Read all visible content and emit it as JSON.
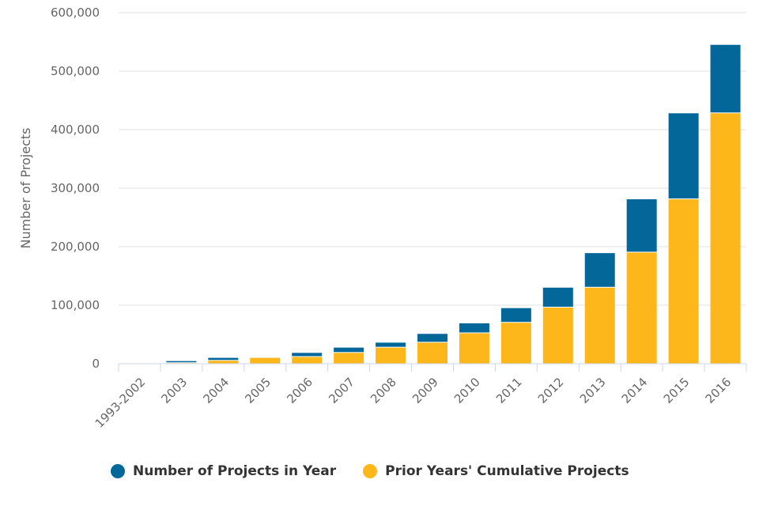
{
  "chart_data": {
    "type": "bar",
    "stacked": true,
    "title": "",
    "xlabel": "",
    "ylabel": "Number of Projects",
    "ylim": [
      0,
      600000
    ],
    "yticks": [
      0,
      100000,
      200000,
      300000,
      400000,
      500000,
      600000
    ],
    "ytick_labels": [
      "0",
      "100,000",
      "200,000",
      "300,000",
      "400,000",
      "500,000",
      "600,000"
    ],
    "grid": true,
    "legend_position": "bottom",
    "categories": [
      "1993-2002",
      "2003",
      "2004",
      "2005",
      "2006",
      "2007",
      "2008",
      "2009",
      "2010",
      "2011",
      "2012",
      "2013",
      "2014",
      "2015",
      "2016"
    ],
    "series": [
      {
        "name": "Prior Years' Cumulative Projects",
        "color": "#FDB71A",
        "values": [
          0,
          1000,
          5000,
          10000,
          11500,
          18500,
          27500,
          36000,
          52000,
          70000,
          96000,
          130000,
          190000,
          281000,
          428000
        ]
      },
      {
        "name": "Number of Projects in Year",
        "color": "#04679A",
        "values": [
          500,
          3500,
          5000,
          500,
          7000,
          9000,
          8500,
          15000,
          17000,
          25000,
          34000,
          59000,
          91000,
          147000,
          117000
        ]
      }
    ]
  }
}
